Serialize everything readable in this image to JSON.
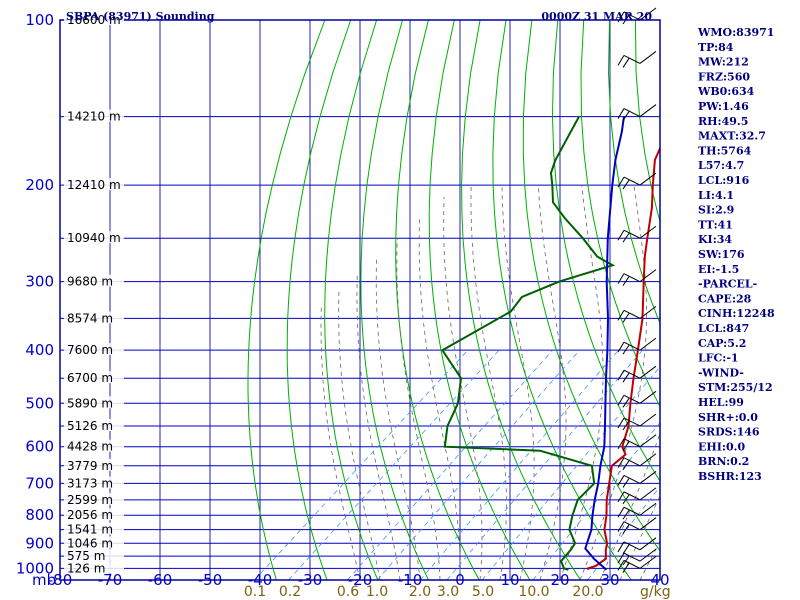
{
  "header": {
    "title": "SBPA (83971) Sounding",
    "time": "0000Z 31 MAR 20"
  },
  "indices": [
    "WMO:83971",
    "TP:84",
    "MW:212",
    "FRZ:560",
    "WB0:634",
    "PW:1.46",
    "RH:49.5",
    "MAXT:32.7",
    "TH:5764",
    "L57:4.7",
    "LCL:916",
    "LI:4.1",
    "SI:2.9",
    "TT:41",
    "KI:34",
    "SW:176",
    "EI:-1.5",
    "-PARCEL-",
    "CAPE:28",
    "CINH:12248",
    "LCL:847",
    "CAP:5.2",
    "LFC:-1",
    "-WIND-",
    "STM:255/12",
    "HEL:99",
    "SHR+:0.0",
    "SRDS:146",
    "EHI:0.0",
    "BRN:0.2",
    "BSHR:123"
  ],
  "chart_data": {
    "type": "line",
    "title": "SBPA (83971) Sounding",
    "pressure_unit": "mb",
    "mixing_ratio_unit": "g/kg",
    "pressure_levels": [
      100,
      200,
      300,
      400,
      500,
      600,
      700,
      800,
      900,
      1000
    ],
    "pressure_labels": [
      "100",
      "200",
      "300",
      "400",
      "500",
      "600",
      "700",
      "800",
      "900",
      "1000"
    ],
    "pressure_axis_label": "mb",
    "temperature_ticks": [
      "-80",
      "-70",
      "-60",
      "-50",
      "-40",
      "-30",
      "-20",
      "-10",
      "0",
      "10",
      "20",
      "30",
      "40"
    ],
    "temperature_range": [
      -80,
      40
    ],
    "height_labels": [
      {
        "p": 100,
        "label": "16600 m"
      },
      {
        "p": 150,
        "label": "14210 m"
      },
      {
        "p": 200,
        "label": "12410 m"
      },
      {
        "p": 250,
        "label": "10940 m"
      },
      {
        "p": 300,
        "label": "9680 m"
      },
      {
        "p": 350,
        "label": "8574 m"
      },
      {
        "p": 400,
        "label": "7600 m"
      },
      {
        "p": 450,
        "label": "6700 m"
      },
      {
        "p": 500,
        "label": "5890 m"
      },
      {
        "p": 550,
        "label": "5126 m"
      },
      {
        "p": 600,
        "label": "4428 m"
      },
      {
        "p": 650,
        "label": "3779 m"
      },
      {
        "p": 700,
        "label": "3173 m"
      },
      {
        "p": 750,
        "label": "2599 m"
      },
      {
        "p": 800,
        "label": "2056 m"
      },
      {
        "p": 850,
        "label": "1541 m"
      },
      {
        "p": 900,
        "label": "1046 m"
      },
      {
        "p": 950,
        "label": "575 m"
      },
      {
        "p": 1000,
        "label": "126 m"
      }
    ],
    "mixing_ratio_labels": [
      "0.1",
      "0.2",
      "0.6",
      "1.0",
      "2.0",
      "3.0",
      "5.0",
      "10.0",
      "20.0"
    ],
    "mixing_ratio_values": [
      0.1,
      0.2,
      0.6,
      1.0,
      2.0,
      3.0,
      5.0,
      10.0,
      20.0
    ],
    "series": [
      {
        "name": "temperature",
        "color": "#c00000",
        "points": [
          [
            1006,
            23.4
          ],
          [
            1000,
            23.0
          ],
          [
            990,
            24.0
          ],
          [
            960,
            24.4
          ],
          [
            925,
            22.4
          ],
          [
            900,
            21.2
          ],
          [
            850,
            17.6
          ],
          [
            800,
            14.8
          ],
          [
            750,
            11.4
          ],
          [
            700,
            8.2
          ],
          [
            650,
            4.8
          ],
          [
            620,
            5.0
          ],
          [
            600,
            2.6
          ],
          [
            550,
            -0.8
          ],
          [
            500,
            -5.5
          ],
          [
            450,
            -10.5
          ],
          [
            400,
            -15.9
          ],
          [
            350,
            -22.1
          ],
          [
            300,
            -30.1
          ],
          [
            270,
            -35.5
          ],
          [
            250,
            -39.1
          ],
          [
            220,
            -45.0
          ],
          [
            200,
            -49.9
          ],
          [
            180,
            -55.1
          ],
          [
            150,
            -61.0
          ],
          [
            130,
            -67.0
          ],
          [
            110,
            -72.5
          ],
          [
            100,
            -74.5
          ]
        ]
      },
      {
        "name": "dewpoint",
        "color": "#006000",
        "points": [
          [
            1006,
            19.4
          ],
          [
            1000,
            18.2
          ],
          [
            970,
            16.0
          ],
          [
            925,
            15.4
          ],
          [
            900,
            14.8
          ],
          [
            850,
            10.6
          ],
          [
            800,
            8.0
          ],
          [
            750,
            5.6
          ],
          [
            700,
            5.2
          ],
          [
            650,
            0.8
          ],
          [
            610,
            -13.0
          ],
          [
            600,
            -32.9
          ],
          [
            550,
            -37.0
          ],
          [
            500,
            -40.0
          ],
          [
            450,
            -45.0
          ],
          [
            400,
            -55.0
          ],
          [
            340,
            -50.0
          ],
          [
            320,
            -51.0
          ],
          [
            300,
            -47.0
          ],
          [
            280,
            -40.0
          ],
          [
            270,
            -45.0
          ],
          [
            250,
            -52.0
          ],
          [
            230,
            -60.0
          ],
          [
            215,
            -66.0
          ],
          [
            200,
            -70.0
          ],
          [
            190,
            -73.0
          ],
          [
            180,
            -75.0
          ],
          [
            150,
            -80.0
          ]
        ]
      },
      {
        "name": "parcel",
        "color": "#0000c0",
        "points": [
          [
            1006,
            27.0
          ],
          [
            960,
            22.0
          ],
          [
            920,
            18.0
          ],
          [
            850,
            15.0
          ],
          [
            800,
            12.0
          ],
          [
            750,
            9.0
          ],
          [
            700,
            6.0
          ],
          [
            650,
            2.5
          ],
          [
            600,
            -1.0
          ],
          [
            550,
            -5.5
          ],
          [
            500,
            -10.5
          ],
          [
            450,
            -16.0
          ],
          [
            400,
            -22.0
          ],
          [
            350,
            -29.0
          ],
          [
            300,
            -37.5
          ],
          [
            250,
            -47.0
          ],
          [
            200,
            -58.0
          ],
          [
            180,
            -63.0
          ],
          [
            160,
            -68.0
          ],
          [
            150,
            -71.0
          ]
        ]
      }
    ],
    "wind_barbs": [
      {
        "p": 1000
      },
      {
        "p": 970
      },
      {
        "p": 925
      },
      {
        "p": 850
      },
      {
        "p": 800
      },
      {
        "p": 750
      },
      {
        "p": 700
      },
      {
        "p": 650
      },
      {
        "p": 600
      },
      {
        "p": 550
      },
      {
        "p": 500
      },
      {
        "p": 450
      },
      {
        "p": 400
      },
      {
        "p": 350
      },
      {
        "p": 300
      },
      {
        "p": 250
      },
      {
        "p": 200
      },
      {
        "p": 150
      },
      {
        "p": 120
      },
      {
        "p": 100
      }
    ],
    "colors": {
      "frame": "#0000a0",
      "isobar": "#0000c0",
      "isotherm": "#2020c0",
      "dry_adiabat": "#00b000",
      "moist_adiabat": "#666666",
      "mixing_ratio": "#4090ff",
      "temperature": "#c00000",
      "dewpoint": "#006000",
      "parcel": "#0000c0"
    }
  }
}
